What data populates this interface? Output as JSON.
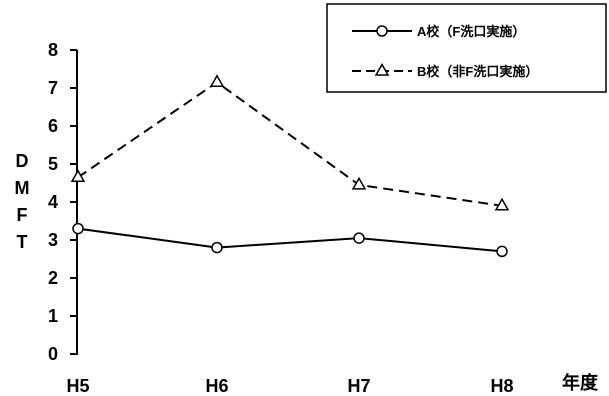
{
  "chart_data": {
    "type": "line",
    "categories": [
      "H5",
      "H6",
      "H7",
      "H8"
    ],
    "xlabel": "年度",
    "ylabel": [
      "D",
      "M",
      "F",
      "T"
    ],
    "ylim": [
      0,
      8
    ],
    "yticks": [
      "0",
      "1",
      "2",
      "3",
      "4",
      "5",
      "6",
      "7",
      "8"
    ],
    "grid": false,
    "legend_position": "top-right",
    "series": [
      {
        "name": "A校（F洗口実施）",
        "values": [
          3.3,
          2.8,
          3.05,
          2.7
        ],
        "marker": "circle",
        "line": "solid"
      },
      {
        "name": "B校（非F洗口実施）",
        "values": [
          4.65,
          7.15,
          4.45,
          3.9
        ],
        "marker": "triangle",
        "line": "dashed"
      }
    ]
  }
}
